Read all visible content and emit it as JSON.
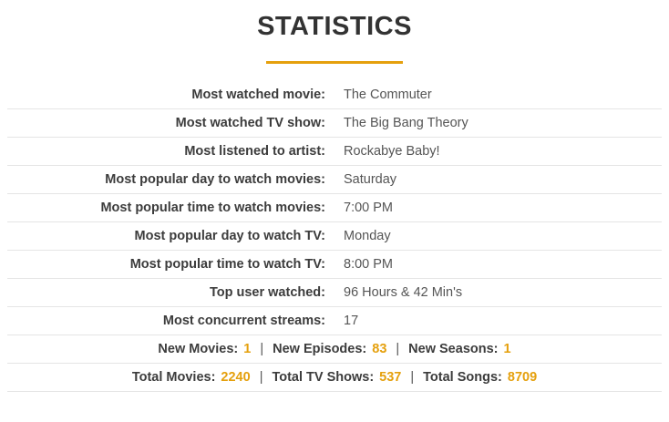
{
  "page": {
    "title": "STATISTICS"
  },
  "table": {
    "rows": [
      {
        "label": "Most watched movie:",
        "value": "The Commuter"
      },
      {
        "label": "Most watched TV show:",
        "value": "The Big Bang Theory"
      },
      {
        "label": "Most listened to artist:",
        "value": "Rockabye Baby!"
      },
      {
        "label": "Most popular day to watch movies:",
        "value": "Saturday"
      },
      {
        "label": "Most popular time to watch movies:",
        "value": "7:00 PM"
      },
      {
        "label": "Most popular day to watch TV:",
        "value": "Monday"
      },
      {
        "label": "Most popular time to watch TV:",
        "value": "8:00 PM"
      },
      {
        "label": "Top user watched:",
        "value": "96 Hours & 42 Min's"
      },
      {
        "label": "Most concurrent streams:",
        "value": "17"
      }
    ],
    "new_row": {
      "movies_label": "New Movies:",
      "movies_value": "1",
      "episodes_label": "New Episodes:",
      "episodes_value": "83",
      "seasons_label": "New Seasons:",
      "seasons_value": "1",
      "separator": "|"
    },
    "totals_row": {
      "movies_label": "Total Movies:",
      "movies_value": "2240",
      "tv_label": "Total TV Shows:",
      "tv_value": "537",
      "songs_label": "Total Songs:",
      "songs_value": "8709",
      "separator": "|"
    }
  },
  "colors": {
    "accent": "#e5a00d",
    "title": "#333333",
    "label": "#3c3c3c",
    "value": "#555555",
    "divider": "#e5e5e5",
    "separator": "#555555"
  }
}
